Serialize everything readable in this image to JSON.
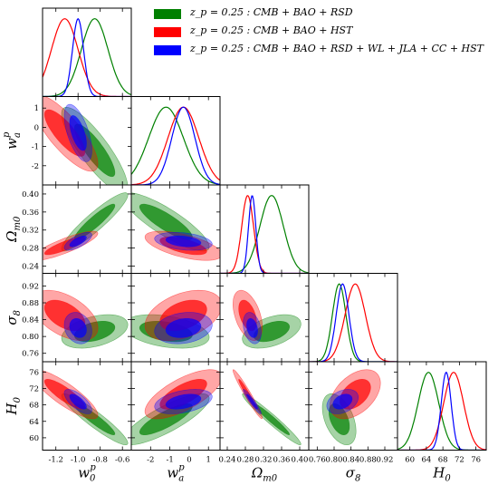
{
  "chart_data": {
    "type": "triangle",
    "parameters": [
      {
        "key": "w0",
        "symbol": "w",
        "sub": "0",
        "sup": "p",
        "range": [
          -1.32,
          -0.52
        ],
        "ticks": [
          -1.2,
          -1.0,
          -0.8,
          -0.6
        ],
        "tick_labels": [
          "-1.2",
          "-1.0",
          "-0.8",
          "-0.6"
        ]
      },
      {
        "key": "wa",
        "symbol": "w",
        "sub": "a",
        "sup": "p",
        "range": [
          -3.0,
          1.6
        ],
        "ticks": [
          -2,
          -1,
          0,
          1
        ],
        "tick_labels": [
          "-2",
          "-1",
          "0",
          "1"
        ]
      },
      {
        "key": "om",
        "symbol": "Ω",
        "sub": "m0",
        "sup": "",
        "range": [
          0.224,
          0.42
        ],
        "ticks": [
          0.24,
          0.28,
          0.32,
          0.36,
          0.4
        ],
        "tick_labels": [
          "0.24",
          "0.28",
          "0.32",
          "0.36",
          "0.40"
        ]
      },
      {
        "key": "s8",
        "symbol": "σ",
        "sub": "8",
        "sup": "",
        "range": [
          0.74,
          0.95
        ],
        "ticks": [
          0.76,
          0.8,
          0.84,
          0.88,
          0.92
        ],
        "tick_labels": [
          "0.76",
          "0.80",
          "0.84",
          "0.88",
          "0.92"
        ]
      },
      {
        "key": "h0",
        "symbol": "H",
        "sub": "0",
        "sup": "",
        "range": [
          57,
          78.5
        ],
        "ticks": [
          60,
          64,
          68,
          72,
          76
        ],
        "tick_labels": [
          "60",
          "64",
          "68",
          "72",
          "76"
        ]
      }
    ],
    "series": [
      {
        "name": "z_p = 0.25 :  CMB + BAO + RSD",
        "color": "#008000",
        "mean": [
          -0.85,
          -1.2,
          0.338,
          0.812,
          64.5
        ],
        "sigma": [
          0.12,
          0.9,
          0.026,
          0.016,
          2.5
        ],
        "corr": {
          "0-1": -0.85,
          "0-2": 0.92,
          "0-3": 0.4,
          "0-4": -0.93,
          "1-2": -0.85,
          "1-3": -0.35,
          "1-4": 0.82,
          "2-3": 0.45,
          "2-4": -0.97,
          "3-4": -0.45
        }
      },
      {
        "name": "z_p = 0.25 :  CMB + BAO + HST",
        "color": "#ff0000",
        "mean": [
          -1.12,
          -0.3,
          0.285,
          0.85,
          70.6
        ],
        "sigma": [
          0.12,
          0.8,
          0.013,
          0.024,
          2.4
        ],
        "corr": {
          "0-1": -0.8,
          "0-2": 0.85,
          "0-3": -0.5,
          "0-4": -0.85,
          "1-2": -0.6,
          "1-3": 0.4,
          "1-4": 0.7,
          "2-3": -0.45,
          "2-4": -0.97,
          "3-4": 0.45
        }
      },
      {
        "name": "z_p = 0.25 :  CMB + BAO + RSD + WL + JLA + CC + HST",
        "color": "#0000ff",
        "mean": [
          -1.0,
          -0.3,
          0.295,
          0.82,
          68.8
        ],
        "sigma": [
          0.05,
          0.6,
          0.008,
          0.015,
          1.2
        ],
        "corr": {
          "0-1": -0.6,
          "0-2": 0.7,
          "0-3": -0.2,
          "0-4": -0.7,
          "1-2": -0.3,
          "1-3": 0.2,
          "1-4": 0.4,
          "2-3": -0.3,
          "2-4": -0.95,
          "3-4": 0.35
        }
      }
    ]
  }
}
